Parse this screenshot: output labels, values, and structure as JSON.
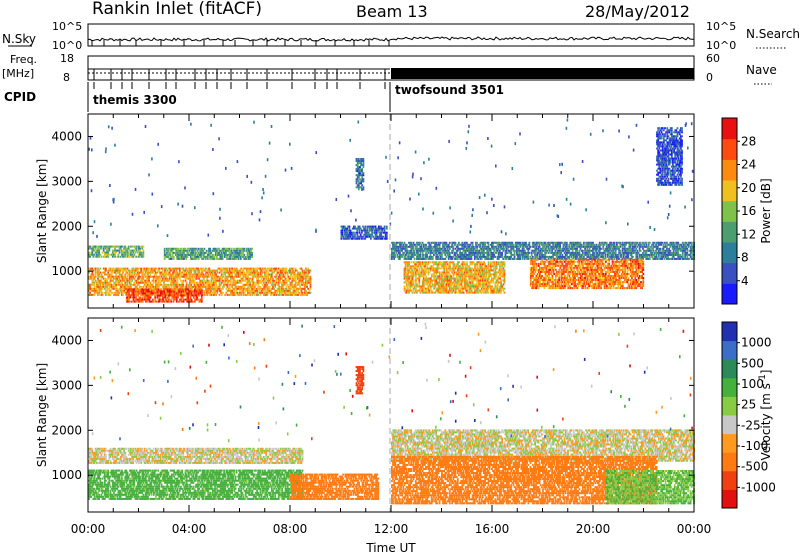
{
  "header": {
    "title": "Rankin Inlet (fitACF)",
    "beam": "Beam 13",
    "date": "28/May/2012"
  },
  "top_panels": {
    "nsky_label": "N.Sky",
    "nsky_ticks": [
      "10^5",
      "10^0"
    ],
    "nsearch_label": "N.Search",
    "nsearch_ticks": [
      "10^5",
      "10^0"
    ],
    "freq_label": "Freq.",
    "freq_unit": "[MHz]",
    "freq_ticks": [
      "18",
      "8"
    ],
    "nave_label": "Nave",
    "nave_ticks": [
      "60",
      "0"
    ],
    "cpid_label": "CPID",
    "cpid_modes": [
      {
        "name": "themis 3300",
        "start_hour": 0
      },
      {
        "name": "twofsound 3501",
        "start_hour": 12.0
      }
    ]
  },
  "chart_data": [
    {
      "type": "heatmap",
      "panel": "power",
      "ylabel": "Slant Range [km]",
      "y_ticks": [
        "1000",
        "2000",
        "3000",
        "4000"
      ],
      "ylim": [
        180,
        4500
      ],
      "xlim": [
        0,
        24
      ],
      "colorbar_label": "Power [dB]",
      "colorbar_ticks": [
        "4",
        "8",
        "12",
        "16",
        "20",
        "24",
        "28"
      ],
      "colorbar_range": [
        0,
        32
      ],
      "colors": [
        "#1a1aff",
        "#3a50c0",
        "#2c7e9a",
        "#4c9e6e",
        "#7ec24a",
        "#f0c020",
        "#ff8a10",
        "#ff4a10",
        "#e81010"
      ],
      "echo_regions": [
        {
          "t0": 0.0,
          "t1": 2.2,
          "r0": 1300,
          "r1": 1550,
          "level": 14
        },
        {
          "t0": 0.0,
          "t1": 8.8,
          "r0": 450,
          "r1": 1050,
          "level": 22
        },
        {
          "t0": 1.5,
          "t1": 4.5,
          "r0": 300,
          "r1": 600,
          "level": 27
        },
        {
          "t0": 3.0,
          "t1": 6.5,
          "r0": 1250,
          "r1": 1500,
          "level": 12
        },
        {
          "t0": 10.0,
          "t1": 11.8,
          "r0": 1700,
          "r1": 2000,
          "level": 6
        },
        {
          "t0": 10.6,
          "t1": 10.9,
          "r0": 2800,
          "r1": 3500,
          "level": 8
        },
        {
          "t0": 12.0,
          "t1": 24.0,
          "r0": 1250,
          "r1": 1650,
          "level": 9
        },
        {
          "t0": 12.5,
          "t1": 16.5,
          "r0": 500,
          "r1": 1200,
          "level": 21
        },
        {
          "t0": 17.5,
          "t1": 22.0,
          "r0": 600,
          "r1": 1250,
          "level": 24
        },
        {
          "t0": 22.5,
          "t1": 23.5,
          "r0": 2900,
          "r1": 4200,
          "level": 5
        }
      ]
    },
    {
      "type": "heatmap",
      "panel": "velocity",
      "ylabel": "Slant Range [km]",
      "y_ticks": [
        "1000",
        "2000",
        "3000",
        "4000"
      ],
      "ylim": [
        180,
        4500
      ],
      "xlim": [
        0,
        24
      ],
      "x_ticks": [
        "00:00",
        "04:00",
        "08:00",
        "12:00",
        "16:00",
        "20:00",
        "00:00"
      ],
      "xlabel": "Time UT",
      "colorbar_label": "Velocity [m s^-1]",
      "colorbar_ticks": [
        "1000",
        "500",
        "100",
        "25",
        "-25",
        "-100",
        "-500",
        "-1000"
      ],
      "colors": [
        "#2030b0",
        "#3a6ec8",
        "#2c8a5a",
        "#46b03c",
        "#88cc44",
        "#c8c8c8",
        "#ff9a20",
        "#ff7a10",
        "#f04010",
        "#e01010"
      ],
      "echo_regions": [
        {
          "t0": 0.0,
          "t1": 8.5,
          "r0": 1250,
          "r1": 1600,
          "vel": 0
        },
        {
          "t0": 0.0,
          "t1": 8.5,
          "r0": 450,
          "r1": 1100,
          "vel": 150
        },
        {
          "t0": 8.0,
          "t1": 11.5,
          "r0": 450,
          "r1": 1000,
          "vel": -300
        },
        {
          "t0": 10.6,
          "t1": 10.9,
          "r0": 2800,
          "r1": 3400,
          "vel": -700
        },
        {
          "t0": 12.0,
          "t1": 24.0,
          "r0": 1300,
          "r1": 2000,
          "vel": 0
        },
        {
          "t0": 12.0,
          "t1": 22.5,
          "r0": 350,
          "r1": 1400,
          "vel": -250
        },
        {
          "t0": 20.5,
          "t1": 24.0,
          "r0": 350,
          "r1": 1100,
          "vel": 100
        }
      ]
    }
  ]
}
